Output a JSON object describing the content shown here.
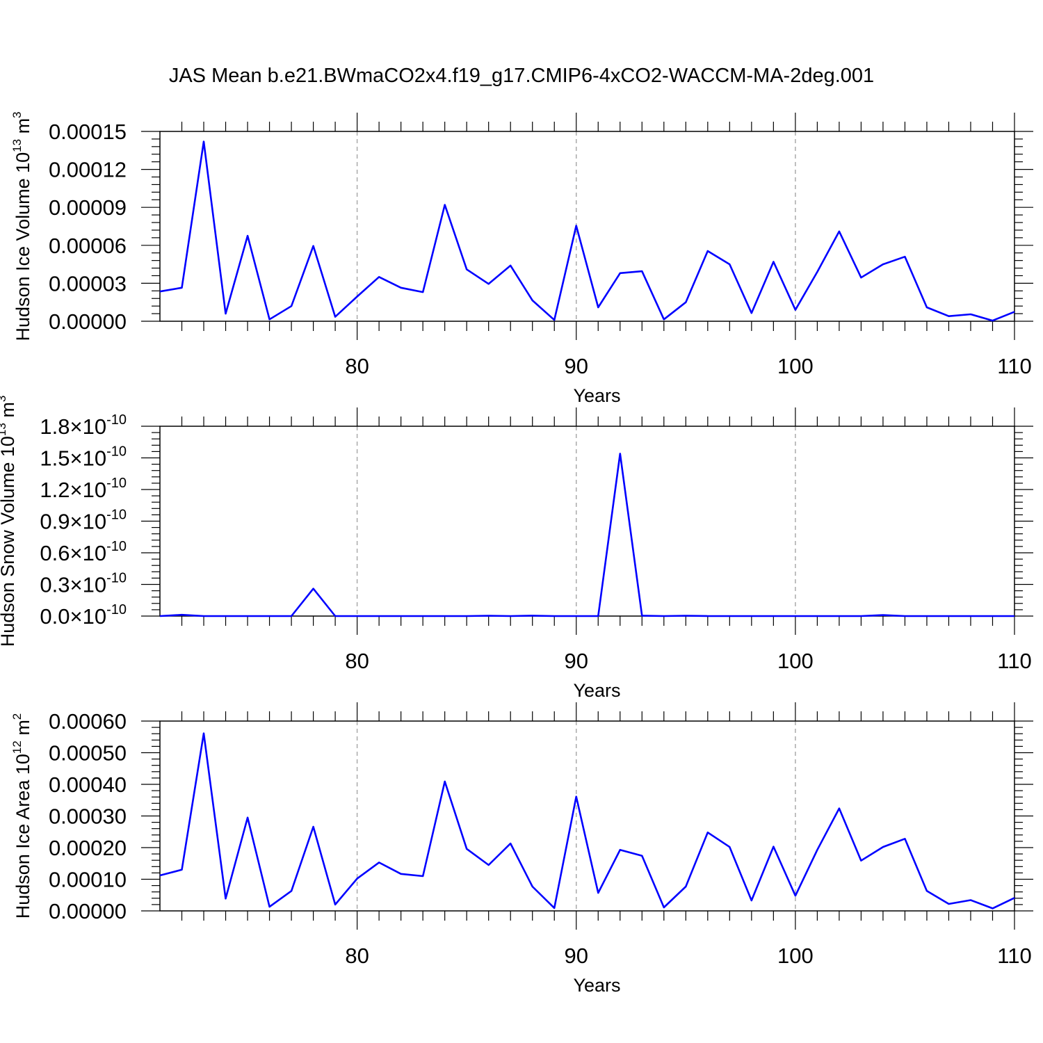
{
  "title": "JAS Mean b.e21.BWmaCO2x4.f19_g17.CMIP6-4xCO2-WACCM-MA-2deg.001",
  "colors": {
    "series": "#0000ff",
    "grid": "#aaaaaa",
    "axis": "#000000"
  },
  "chart_data": [
    {
      "type": "line",
      "xlabel": "Years",
      "ylabel_main": "Hudson Ice Volume 10",
      "ylabel_exp": "13",
      "ylabel_unit": " m",
      "ylabel_unit_exp": "3",
      "xlim": [
        71,
        110
      ],
      "ylim": [
        0,
        0.00015
      ],
      "xticks": [
        80,
        90,
        100,
        110
      ],
      "xtick_labels": [
        "80",
        "90",
        "100",
        "110"
      ],
      "yticks": [
        0,
        3e-05,
        6e-05,
        9e-05,
        0.00012,
        0.00015
      ],
      "ytick_labels": [
        "0.00000",
        "0.00003",
        "0.00006",
        "0.00009",
        "0.00012",
        "0.00015"
      ],
      "grid_x": [
        80,
        90,
        100
      ],
      "x": [
        71,
        72,
        73,
        74,
        75,
        76,
        77,
        78,
        79,
        80,
        81,
        82,
        83,
        84,
        85,
        86,
        87,
        88,
        89,
        90,
        91,
        92,
        93,
        94,
        95,
        96,
        97,
        98,
        99,
        100,
        101,
        102,
        103,
        104,
        105,
        106,
        107,
        108,
        109,
        110
      ],
      "series": [
        {
          "values": [
            2.35e-05,
            2.65e-05,
            0.000142,
            6e-06,
            6.75e-05,
            1.5e-06,
            1.2e-05,
            5.95e-05,
            3.5e-06,
            1.95e-05,
            3.5e-05,
            2.65e-05,
            2.3e-05,
            9.2e-05,
            4.1e-05,
            2.95e-05,
            4.4e-05,
            1.65e-05,
            1e-06,
            7.55e-05,
            1.1e-05,
            3.8e-05,
            3.95e-05,
            1.5e-06,
            1.5e-05,
            5.55e-05,
            4.5e-05,
            6.5e-06,
            4.7e-05,
            9e-06,
            3.9e-05,
            7.1e-05,
            3.45e-05,
            4.5e-05,
            5.1e-05,
            1.1e-05,
            4e-06,
            5.5e-06,
            5e-07,
            7.5e-06
          ]
        }
      ]
    },
    {
      "type": "line",
      "xlabel": "Years",
      "ylabel_main": "Hudson Snow Volume 10",
      "ylabel_exp": "13",
      "ylabel_unit": " m",
      "ylabel_unit_exp": "3",
      "xlim": [
        71,
        110
      ],
      "ylim": [
        0,
        1.8e-10
      ],
      "xticks": [
        80,
        90,
        100,
        110
      ],
      "xtick_labels": [
        "80",
        "90",
        "100",
        "110"
      ],
      "yticks": [
        0,
        3e-11,
        6e-11,
        9e-11,
        1.2e-10,
        1.5e-10,
        1.8e-10
      ],
      "ytick_mantissas": [
        "0.0",
        "0.3",
        "0.6",
        "0.9",
        "1.2",
        "1.5",
        "1.8"
      ],
      "ytick_times": "×10",
      "ytick_exp": "-10",
      "grid_x": [
        80,
        90,
        100
      ],
      "x": [
        71,
        72,
        73,
        74,
        75,
        76,
        77,
        78,
        79,
        80,
        81,
        82,
        83,
        84,
        85,
        86,
        87,
        88,
        89,
        90,
        91,
        92,
        93,
        94,
        95,
        96,
        97,
        98,
        99,
        100,
        101,
        102,
        103,
        104,
        105,
        106,
        107,
        108,
        109,
        110
      ],
      "series": [
        {
          "values": [
            0,
            1.2e-12,
            0,
            0,
            0,
            0,
            0,
            2.6e-11,
            0,
            0,
            0,
            0,
            0,
            0,
            0,
            3e-13,
            0,
            4e-13,
            0,
            0,
            0,
            1.54e-10,
            4e-13,
            0,
            3e-13,
            0,
            0,
            0,
            0,
            0,
            0,
            0,
            0,
            9e-13,
            0,
            0,
            0,
            0,
            0,
            0
          ]
        }
      ]
    },
    {
      "type": "line",
      "xlabel": "Years",
      "ylabel_main": "Hudson Ice Area 10",
      "ylabel_exp": "12",
      "ylabel_unit": " m",
      "ylabel_unit_exp": "2",
      "xlim": [
        71,
        110
      ],
      "ylim": [
        0,
        0.0006
      ],
      "xticks": [
        80,
        90,
        100,
        110
      ],
      "xtick_labels": [
        "80",
        "90",
        "100",
        "110"
      ],
      "yticks": [
        0,
        0.0001,
        0.0002,
        0.0003,
        0.0004,
        0.0005,
        0.0006
      ],
      "ytick_labels": [
        "0.00000",
        "0.00010",
        "0.00020",
        "0.00030",
        "0.00040",
        "0.00050",
        "0.00060"
      ],
      "grid_x": [
        80,
        90,
        100
      ],
      "x": [
        71,
        72,
        73,
        74,
        75,
        76,
        77,
        78,
        79,
        80,
        81,
        82,
        83,
        84,
        85,
        86,
        87,
        88,
        89,
        90,
        91,
        92,
        93,
        94,
        95,
        96,
        97,
        98,
        99,
        100,
        101,
        102,
        103,
        104,
        105,
        106,
        107,
        108,
        109,
        110
      ],
      "series": [
        {
          "values": [
            0.000112,
            0.00013,
            0.000561,
            3.9e-05,
            0.000295,
            1.3e-05,
            6.3e-05,
            0.000266,
            2e-05,
            0.000102,
            0.000153,
            0.000117,
            0.00011,
            0.000409,
            0.000196,
            0.000145,
            0.000213,
            7.7e-05,
            9e-06,
            0.000361,
            5.7e-05,
            0.000193,
            0.000174,
            1.1e-05,
            7.7e-05,
            0.000248,
            0.000202,
            3.3e-05,
            0.000203,
            4.8e-05,
            0.000193,
            0.000324,
            0.000159,
            0.000202,
            0.000228,
            6.3e-05,
            2.2e-05,
            3.4e-05,
            8e-06,
            4.1e-05
          ]
        }
      ]
    }
  ]
}
